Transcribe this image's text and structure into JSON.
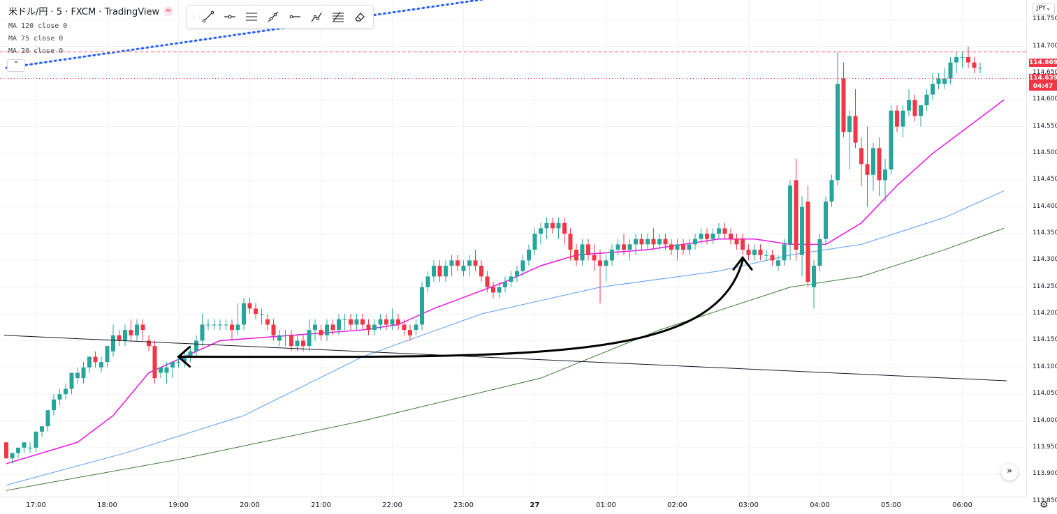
{
  "header": {
    "symbol": "米ドル/円 · 5 · FXCM · TradingView",
    "wave_icon": "≈",
    "indicators": [
      "MA 120 close 0",
      "MA 75 close 0",
      "MA 20 close 0"
    ]
  },
  "toolbar": {
    "tools": [
      "trend-line-icon",
      "horizontal-ray-icon",
      "parallel-channel-icon",
      "extended-line-icon",
      "horizontal-line-icon",
      "path-icon",
      "fib-retracement-icon",
      "eraser-icon"
    ]
  },
  "controls": {
    "collapse_label": "⌃",
    "currency": "JPY",
    "currency_chevron": "⌄",
    "scroll_right": "»",
    "settings": "⚙"
  },
  "price_tags": {
    "last": "114.669",
    "current": "114.639",
    "countdown": "04:47"
  },
  "colors": {
    "up": "#26a69a",
    "down": "#f23645",
    "ma20": "#e91ee3",
    "ma75": "#5b9cf6",
    "ma120": "#3e7a34"
  },
  "chart_data": {
    "type": "candlestick",
    "ylim": [
      113.85,
      114.79
    ],
    "y_ticks": [
      113.85,
      113.9,
      113.95,
      114.0,
      114.05,
      114.1,
      114.15,
      114.2,
      114.25,
      114.3,
      114.35,
      114.4,
      114.45,
      114.5,
      114.55,
      114.6,
      114.65,
      114.7,
      114.75
    ],
    "y_tick_labels": [
      "113.850",
      "113.900",
      "113.950",
      "114.000",
      "114.050",
      "114.100",
      "114.150",
      "114.200",
      "114.250",
      "114.300",
      "114.350",
      "114.400",
      "114.450",
      "114.500",
      "114.550",
      "114.600",
      "114.650",
      "114.700",
      "114.750"
    ],
    "x_labels": [
      "17:00",
      "18:00",
      "19:00",
      "20:00",
      "21:00",
      "22:00",
      "23:00",
      "27",
      "01:00",
      "02:00",
      "03:00",
      "04:00",
      "05:00",
      "06:00"
    ],
    "bars_per_hour": 12,
    "start_time": "16:35",
    "candles": [
      [
        113.96,
        113.96,
        113.93,
        113.93
      ],
      [
        113.93,
        113.94,
        113.92,
        113.94
      ],
      [
        113.94,
        113.95,
        113.93,
        113.95
      ],
      [
        113.95,
        113.96,
        113.94,
        113.96
      ],
      [
        113.95,
        113.96,
        113.94,
        113.95
      ],
      [
        113.95,
        113.98,
        113.94,
        113.98
      ],
      [
        113.98,
        113.99,
        113.97,
        113.99
      ],
      [
        113.99,
        114.02,
        113.98,
        114.02
      ],
      [
        114.02,
        114.05,
        114.01,
        114.04
      ],
      [
        114.04,
        114.06,
        114.03,
        114.05
      ],
      [
        114.05,
        114.07,
        114.04,
        114.06
      ],
      [
        114.06,
        114.09,
        114.05,
        114.09
      ],
      [
        114.08,
        114.1,
        114.07,
        114.09
      ],
      [
        114.08,
        114.11,
        114.07,
        114.1
      ],
      [
        114.1,
        114.12,
        114.09,
        114.12
      ],
      [
        114.12,
        114.13,
        114.1,
        114.11
      ],
      [
        114.1,
        114.12,
        114.09,
        114.11
      ],
      [
        114.11,
        114.14,
        114.1,
        114.14
      ],
      [
        114.13,
        114.18,
        114.12,
        114.16
      ],
      [
        114.16,
        114.17,
        114.14,
        114.15
      ],
      [
        114.15,
        114.18,
        114.14,
        114.17
      ],
      [
        114.17,
        114.19,
        114.15,
        114.16
      ],
      [
        114.16,
        114.19,
        114.15,
        114.18
      ],
      [
        114.18,
        114.19,
        114.15,
        114.17
      ],
      [
        114.15,
        114.16,
        114.13,
        114.14
      ],
      [
        114.14,
        114.15,
        114.07,
        114.08
      ],
      [
        114.09,
        114.1,
        114.08,
        114.1
      ],
      [
        114.09,
        114.11,
        114.07,
        114.1
      ],
      [
        114.1,
        114.11,
        114.08,
        114.11
      ],
      [
        114.11,
        114.12,
        114.1,
        114.11
      ],
      [
        114.11,
        114.13,
        114.1,
        114.12
      ],
      [
        114.12,
        114.14,
        114.11,
        114.13
      ],
      [
        114.13,
        114.16,
        114.12,
        114.15
      ],
      [
        114.15,
        114.2,
        114.14,
        114.18
      ],
      [
        114.18,
        114.19,
        114.17,
        114.18
      ],
      [
        114.18,
        114.19,
        114.17,
        114.18
      ],
      [
        114.18,
        114.19,
        114.17,
        114.18
      ],
      [
        114.18,
        114.19,
        114.17,
        114.18
      ],
      [
        114.18,
        114.19,
        114.15,
        114.17
      ],
      [
        114.17,
        114.22,
        114.16,
        114.18
      ],
      [
        114.18,
        114.23,
        114.17,
        114.22
      ],
      [
        114.22,
        114.23,
        114.2,
        114.21
      ],
      [
        114.21,
        114.22,
        114.19,
        114.2
      ],
      [
        114.2,
        114.21,
        114.18,
        114.2
      ],
      [
        114.19,
        114.2,
        114.17,
        114.18
      ],
      [
        114.18,
        114.19,
        114.15,
        114.16
      ],
      [
        114.15,
        114.17,
        114.14,
        114.16
      ],
      [
        114.16,
        114.17,
        114.14,
        114.16
      ],
      [
        114.16,
        114.17,
        114.13,
        114.14
      ],
      [
        114.14,
        114.16,
        114.13,
        114.15
      ],
      [
        114.15,
        114.16,
        114.13,
        114.14
      ],
      [
        114.14,
        114.19,
        114.13,
        114.17
      ],
      [
        114.17,
        114.19,
        114.15,
        114.18
      ],
      [
        114.17,
        114.18,
        114.15,
        114.16
      ],
      [
        114.16,
        114.19,
        114.15,
        114.18
      ],
      [
        114.18,
        114.19,
        114.16,
        114.17
      ],
      [
        114.17,
        114.2,
        114.16,
        114.19
      ],
      [
        114.19,
        114.2,
        114.17,
        114.19
      ],
      [
        114.19,
        114.2,
        114.17,
        114.18
      ],
      [
        114.18,
        114.2,
        114.17,
        114.19
      ],
      [
        114.19,
        114.2,
        114.17,
        114.18
      ],
      [
        114.18,
        114.19,
        114.16,
        114.17
      ],
      [
        114.17,
        114.19,
        114.16,
        114.18
      ],
      [
        114.18,
        114.2,
        114.17,
        114.19
      ],
      [
        114.19,
        114.2,
        114.17,
        114.18
      ],
      [
        114.18,
        114.21,
        114.17,
        114.19
      ],
      [
        114.19,
        114.2,
        114.17,
        114.18
      ],
      [
        114.18,
        114.19,
        114.16,
        114.17
      ],
      [
        114.17,
        114.18,
        114.15,
        114.16
      ],
      [
        114.17,
        114.19,
        114.16,
        114.18
      ],
      [
        114.18,
        114.26,
        114.17,
        114.25
      ],
      [
        114.25,
        114.28,
        114.24,
        114.27
      ],
      [
        114.27,
        114.3,
        114.26,
        114.29
      ],
      [
        114.29,
        114.3,
        114.26,
        114.27
      ],
      [
        114.27,
        114.3,
        114.26,
        114.29
      ],
      [
        114.29,
        114.31,
        114.27,
        114.3
      ],
      [
        114.3,
        114.31,
        114.28,
        114.29
      ],
      [
        114.28,
        114.3,
        114.27,
        114.29
      ],
      [
        114.29,
        114.31,
        114.27,
        114.3
      ],
      [
        114.3,
        114.32,
        114.28,
        114.29
      ],
      [
        114.29,
        114.3,
        114.26,
        114.27
      ],
      [
        114.27,
        114.28,
        114.24,
        114.25
      ],
      [
        114.25,
        114.26,
        114.23,
        114.24
      ],
      [
        114.24,
        114.26,
        114.23,
        114.25
      ],
      [
        114.25,
        114.27,
        114.24,
        114.26
      ],
      [
        114.26,
        114.28,
        114.25,
        114.27
      ],
      [
        114.27,
        114.29,
        114.26,
        114.28
      ],
      [
        114.28,
        114.31,
        114.27,
        114.3
      ],
      [
        114.3,
        114.33,
        114.29,
        114.32
      ],
      [
        114.32,
        114.36,
        114.31,
        114.35
      ],
      [
        114.35,
        114.37,
        114.33,
        114.36
      ],
      [
        114.36,
        114.38,
        114.34,
        114.37
      ],
      [
        114.37,
        114.38,
        114.35,
        114.36
      ],
      [
        114.36,
        114.38,
        114.34,
        114.37
      ],
      [
        114.37,
        114.38,
        114.33,
        114.35
      ],
      [
        114.35,
        114.36,
        114.3,
        114.32
      ],
      [
        114.32,
        114.33,
        114.29,
        114.3
      ],
      [
        114.3,
        114.34,
        114.29,
        114.33
      ],
      [
        114.33,
        114.34,
        114.3,
        114.31
      ],
      [
        114.31,
        114.33,
        114.28,
        114.3
      ],
      [
        114.3,
        114.32,
        114.22,
        114.29
      ],
      [
        114.29,
        114.31,
        114.26,
        114.3
      ],
      [
        114.3,
        114.33,
        114.29,
        114.32
      ],
      [
        114.32,
        114.34,
        114.31,
        114.33
      ],
      [
        114.33,
        114.35,
        114.31,
        114.32
      ],
      [
        114.32,
        114.34,
        114.3,
        114.33
      ],
      [
        114.33,
        114.35,
        114.31,
        114.34
      ],
      [
        114.34,
        114.35,
        114.32,
        114.33
      ],
      [
        114.33,
        114.35,
        114.32,
        114.34
      ],
      [
        114.34,
        114.36,
        114.32,
        114.33
      ],
      [
        114.33,
        114.35,
        114.32,
        114.34
      ],
      [
        114.34,
        114.35,
        114.32,
        114.33
      ],
      [
        114.33,
        114.34,
        114.31,
        114.32
      ],
      [
        114.32,
        114.34,
        114.3,
        114.33
      ],
      [
        114.33,
        114.34,
        114.31,
        114.32
      ],
      [
        114.32,
        114.34,
        114.31,
        114.33
      ],
      [
        114.33,
        114.35,
        114.32,
        114.34
      ],
      [
        114.34,
        114.36,
        114.33,
        114.35
      ],
      [
        114.35,
        114.36,
        114.33,
        114.34
      ],
      [
        114.34,
        114.36,
        114.33,
        114.35
      ],
      [
        114.35,
        114.37,
        114.34,
        114.36
      ],
      [
        114.36,
        114.37,
        114.34,
        114.35
      ],
      [
        114.35,
        114.36,
        114.33,
        114.34
      ],
      [
        114.34,
        114.35,
        114.32,
        114.33
      ],
      [
        114.34,
        114.35,
        114.31,
        114.32
      ],
      [
        114.32,
        114.33,
        114.3,
        114.31
      ],
      [
        114.31,
        114.33,
        114.3,
        114.32
      ],
      [
        114.32,
        114.33,
        114.3,
        114.31
      ],
      [
        114.31,
        114.32,
        114.3,
        114.31
      ],
      [
        114.31,
        114.32,
        114.29,
        114.3
      ],
      [
        114.29,
        114.31,
        114.28,
        114.3
      ],
      [
        114.3,
        114.34,
        114.29,
        114.33
      ],
      [
        114.33,
        114.45,
        114.3,
        114.44
      ],
      [
        114.45,
        114.49,
        114.3,
        114.32
      ],
      [
        114.31,
        114.42,
        114.27,
        114.4
      ],
      [
        114.41,
        114.44,
        114.25,
        114.26
      ],
      [
        114.25,
        114.3,
        114.21,
        114.29
      ],
      [
        114.29,
        114.35,
        114.28,
        114.34
      ],
      [
        114.34,
        114.42,
        114.33,
        114.41
      ],
      [
        114.41,
        114.46,
        114.4,
        114.45
      ],
      [
        114.45,
        114.69,
        114.44,
        114.63
      ],
      [
        114.64,
        114.67,
        114.53,
        114.54
      ],
      [
        114.54,
        114.58,
        114.47,
        114.57
      ],
      [
        114.57,
        114.62,
        114.51,
        114.52
      ],
      [
        114.51,
        114.53,
        114.44,
        114.48
      ],
      [
        114.48,
        114.55,
        114.4,
        114.46
      ],
      [
        114.46,
        114.52,
        114.43,
        114.51
      ],
      [
        114.51,
        114.53,
        114.42,
        114.45
      ],
      [
        114.45,
        114.49,
        114.41,
        114.47
      ],
      [
        114.47,
        114.59,
        114.46,
        114.58
      ],
      [
        114.58,
        114.59,
        114.54,
        114.55
      ],
      [
        114.55,
        114.59,
        114.53,
        114.58
      ],
      [
        114.58,
        114.62,
        114.57,
        114.6
      ],
      [
        114.6,
        114.61,
        114.56,
        114.57
      ],
      [
        114.57,
        114.59,
        114.55,
        114.59
      ],
      [
        114.59,
        114.62,
        114.58,
        114.61
      ],
      [
        114.61,
        114.65,
        114.6,
        114.63
      ],
      [
        114.63,
        114.65,
        114.62,
        114.64
      ],
      [
        114.63,
        114.66,
        114.62,
        114.64
      ],
      [
        114.64,
        114.68,
        114.63,
        114.67
      ],
      [
        114.67,
        114.69,
        114.65,
        114.68
      ],
      [
        114.68,
        114.69,
        114.66,
        114.68
      ],
      [
        114.68,
        114.7,
        114.66,
        114.67
      ],
      [
        114.67,
        114.68,
        114.65,
        114.66
      ],
      [
        114.66,
        114.67,
        114.65,
        114.66
      ]
    ],
    "ma20": [
      [
        0,
        113.92
      ],
      [
        12,
        113.96
      ],
      [
        18,
        114.01
      ],
      [
        24,
        114.09
      ],
      [
        30,
        114.12
      ],
      [
        36,
        114.15
      ],
      [
        48,
        114.16
      ],
      [
        60,
        114.17
      ],
      [
        66,
        114.18
      ],
      [
        72,
        114.21
      ],
      [
        84,
        114.26
      ],
      [
        90,
        114.29
      ],
      [
        96,
        114.31
      ],
      [
        108,
        114.32
      ],
      [
        114,
        114.33
      ],
      [
        120,
        114.34
      ],
      [
        126,
        114.34
      ],
      [
        132,
        114.33
      ],
      [
        138,
        114.33
      ],
      [
        144,
        114.37
      ],
      [
        150,
        114.44
      ],
      [
        156,
        114.5
      ],
      [
        162,
        114.55
      ],
      [
        168,
        114.6
      ]
    ],
    "ma75": [
      [
        0,
        113.88
      ],
      [
        20,
        113.94
      ],
      [
        40,
        114.01
      ],
      [
        60,
        114.12
      ],
      [
        80,
        114.2
      ],
      [
        100,
        114.25
      ],
      [
        120,
        114.28
      ],
      [
        132,
        114.31
      ],
      [
        144,
        114.33
      ],
      [
        158,
        114.38
      ],
      [
        168,
        114.43
      ]
    ],
    "ma120": [
      [
        0,
        113.87
      ],
      [
        30,
        113.93
      ],
      [
        60,
        114.0
      ],
      [
        90,
        114.08
      ],
      [
        110,
        114.17
      ],
      [
        132,
        114.25
      ],
      [
        144,
        114.27
      ],
      [
        158,
        114.32
      ],
      [
        168,
        114.36
      ]
    ],
    "trendline_black": [
      [
        0,
        114.16
      ],
      [
        168,
        114.075
      ]
    ],
    "trendline_blue_dotted": [
      [
        0,
        114.66
      ],
      [
        113,
        114.84
      ]
    ],
    "hline_dashed": 114.69,
    "hline_dotted": 114.64,
    "arrow": {
      "from": [
        124,
        114.3
      ],
      "to": [
        29,
        114.12
      ]
    }
  }
}
